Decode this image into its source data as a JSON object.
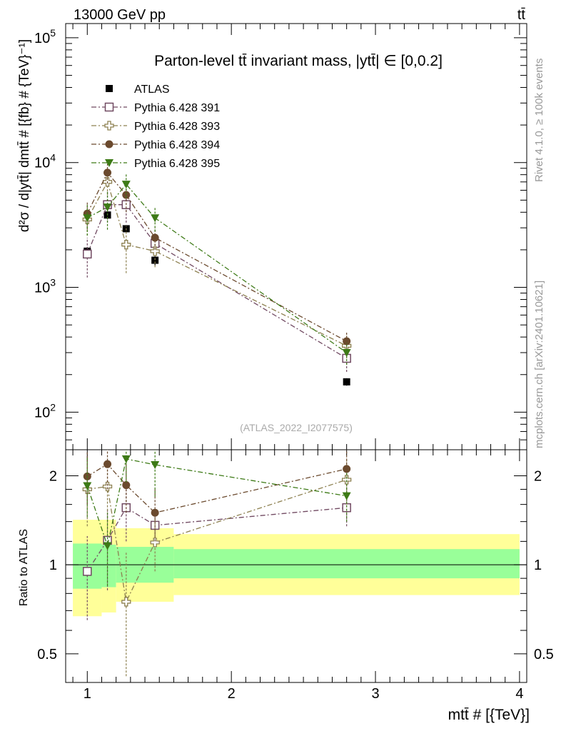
{
  "header": {
    "energy_label": "13000 GeV pp",
    "process_label": "tt̄"
  },
  "side_notes": {
    "rivet": "Rivet 4.1.0, ≥ 100k events",
    "source": "mcplots.cern.ch [arXiv:2401.10621]"
  },
  "colors": {
    "atlas": "#000000",
    "p391": "#714a62",
    "p393": "#8d8050",
    "p394": "#6b4a2e",
    "p395": "#3d7a16",
    "band_outer": "#ffff99",
    "band_inner": "#99ff99"
  },
  "chart_data": [
    {
      "type": "scatter",
      "title": "Parton-level tt̄ invariant mass, |ytt̄| ∈ [0,0.2]",
      "xlabel": "mtt̄ # [{TeV}]",
      "ylabel": "d²σ / d|ytt̄| dmtt̄ # [{fb} # {TeV}⁻¹]",
      "yscale": "log",
      "xlim": [
        0.85,
        4.05
      ],
      "ylim": [
        50,
        130000
      ],
      "x_ticks": [
        1,
        2,
        3,
        4
      ],
      "y_tick_labels": [
        {
          "value": 100,
          "base": "10",
          "exp": "2"
        },
        {
          "value": 1000,
          "base": "10",
          "exp": "3"
        },
        {
          "value": 10000,
          "base": "10",
          "exp": "4"
        },
        {
          "value": 100000,
          "base": "10",
          "exp": "5"
        }
      ],
      "analysis_tag": "(ATLAS_2022_I2077575)",
      "legend_position": "top-left",
      "series": [
        {
          "name": "ATLAS",
          "marker": "square-filled",
          "color_key": "atlas",
          "line": false,
          "x": [
            1.0,
            1.14,
            1.27,
            1.47,
            2.8
          ],
          "y": [
            1950,
            3800,
            2950,
            1650,
            175
          ],
          "err": [
            150,
            300,
            200,
            150,
            12
          ]
        },
        {
          "name": "Pythia 6.428 391",
          "marker": "square-open",
          "color_key": "p391",
          "line": true,
          "x": [
            1.0,
            1.14,
            1.27,
            1.47,
            2.8
          ],
          "y": [
            1850,
            4600,
            4600,
            2250,
            270
          ],
          "err": [
            650,
            1300,
            1300,
            400,
            60
          ]
        },
        {
          "name": "Pythia 6.428 393",
          "marker": "cross-open",
          "color_key": "p393",
          "line": true,
          "x": [
            1.0,
            1.14,
            1.27,
            1.47,
            2.8
          ],
          "y": [
            3500,
            7000,
            2200,
            1950,
            340
          ],
          "err": [
            900,
            1500,
            900,
            500,
            70
          ]
        },
        {
          "name": "Pythia 6.428 394",
          "marker": "circle-filled",
          "color_key": "p394",
          "line": true,
          "x": [
            1.0,
            1.14,
            1.27,
            1.47,
            2.8
          ],
          "y": [
            3900,
            8300,
            5500,
            2500,
            370
          ],
          "err": [
            1000,
            1500,
            1500,
            500,
            70
          ]
        },
        {
          "name": "Pythia 6.428 395",
          "marker": "triangle-down-filled",
          "color_key": "p395",
          "line": true,
          "x": [
            1.0,
            1.14,
            1.27,
            1.47,
            2.8
          ],
          "y": [
            3600,
            4400,
            6700,
            3600,
            300
          ],
          "err": [
            1000,
            1500,
            1500,
            800,
            60
          ]
        }
      ]
    },
    {
      "type": "scatter",
      "title": "",
      "xlabel": "mtt̄ # [{TeV}]",
      "ylabel": "Ratio to ATLAS",
      "yscale": "log",
      "xlim": [
        0.85,
        4.05
      ],
      "ylim": [
        0.4,
        2.45
      ],
      "y_ticks": [
        {
          "value": 0.5,
          "label": "0.5"
        },
        {
          "value": 1,
          "label": "1"
        },
        {
          "value": 2,
          "label": "2"
        }
      ],
      "reference_line": 1,
      "bands": [
        {
          "xlo": 0.9,
          "xhi": 1.1,
          "outer": [
            0.67,
            1.42
          ],
          "inner": [
            0.83,
            1.18
          ]
        },
        {
          "xlo": 1.1,
          "xhi": 1.2,
          "outer": [
            0.69,
            1.42
          ],
          "inner": [
            0.84,
            1.17
          ]
        },
        {
          "xlo": 1.2,
          "xhi": 1.6,
          "outer": [
            0.75,
            1.33
          ],
          "inner": [
            0.87,
            1.15
          ]
        },
        {
          "xlo": 1.6,
          "xhi": 4.0,
          "outer": [
            0.79,
            1.27
          ],
          "inner": [
            0.9,
            1.13
          ]
        }
      ],
      "series": [
        {
          "name": "Pythia 6.428 391",
          "marker": "square-open",
          "color_key": "p391",
          "x": [
            1.0,
            1.14,
            1.27,
            1.47,
            2.8
          ],
          "y": [
            0.95,
            1.21,
            1.56,
            1.36,
            1.56
          ],
          "lo": [
            0.65,
            0.82,
            1.2,
            1.15,
            1.35
          ],
          "hi": [
            1.25,
            1.55,
            1.9,
            1.55,
            1.8
          ]
        },
        {
          "name": "Pythia 6.428 393",
          "marker": "cross-open",
          "color_key": "p393",
          "x": [
            1.0,
            1.14,
            1.27,
            1.47,
            2.8
          ],
          "y": [
            1.8,
            1.84,
            0.75,
            1.19,
            1.94
          ],
          "lo": [
            1.35,
            1.4,
            0.42,
            0.95,
            1.6
          ],
          "hi": [
            2.25,
            2.3,
            1.1,
            1.45,
            2.3
          ]
        },
        {
          "name": "Pythia 6.428 394",
          "marker": "circle-filled",
          "color_key": "p394",
          "x": [
            1.0,
            1.14,
            1.27,
            1.47,
            2.8
          ],
          "y": [
            1.99,
            2.19,
            1.86,
            1.5,
            2.11
          ],
          "lo": [
            1.6,
            1.8,
            1.5,
            1.2,
            1.75
          ],
          "hi": [
            2.4,
            2.45,
            2.25,
            1.8,
            2.45
          ]
        },
        {
          "name": "Pythia 6.428 395",
          "marker": "triangle-down-filled",
          "color_key": "p395",
          "x": [
            1.0,
            1.14,
            1.27,
            1.47,
            2.8
          ],
          "y": [
            1.85,
            1.16,
            2.28,
            2.18,
            1.71
          ],
          "lo": [
            1.45,
            0.85,
            1.9,
            1.7,
            1.4
          ],
          "hi": [
            2.3,
            1.5,
            2.45,
            2.45,
            2.05
          ]
        }
      ]
    }
  ]
}
